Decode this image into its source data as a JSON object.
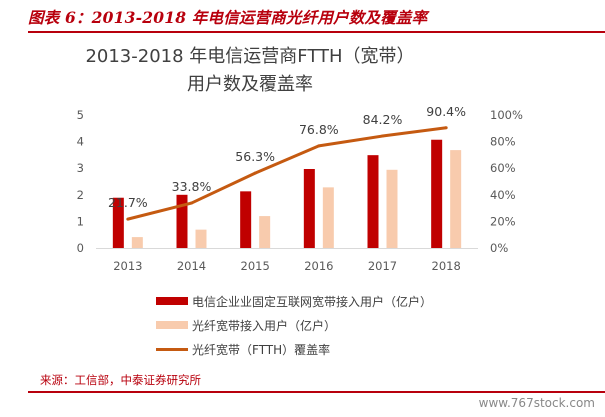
{
  "figure_caption": "图表 6：2013-2018 年电信运营商光纤用户数及覆盖率",
  "source_note": "来源：工信部，中泰证券研究所",
  "watermark": "www.767stock.com",
  "colors": {
    "accent": "#b8000d",
    "bar1": "#c00000",
    "bar2": "#f8cbad",
    "line": "#c55a11"
  },
  "chart_data": {
    "type": "bar",
    "title_line1": "2013-2018 年电信运营商FTTH（宽带）",
    "title_line2": "用户数及覆盖率",
    "categories": [
      "2013",
      "2014",
      "2015",
      "2016",
      "2017",
      "2018"
    ],
    "series": [
      {
        "name": "电信企业业固定互联网宽带接入用户（亿户）",
        "type": "bar",
        "axis": "left",
        "values": [
          1.89,
          2.0,
          2.13,
          2.97,
          3.49,
          4.07
        ]
      },
      {
        "name": "光纤宽带接入用户（亿户）",
        "type": "bar",
        "axis": "left",
        "values": [
          0.41,
          0.69,
          1.2,
          2.28,
          2.94,
          3.68
        ]
      },
      {
        "name": "光纤宽带（FTTH）覆盖率",
        "type": "line",
        "axis": "right",
        "values": [
          21.7,
          33.8,
          56.3,
          76.8,
          84.2,
          90.4
        ],
        "labels": [
          "21.7%",
          "33.8%",
          "56.3%",
          "76.8%",
          "84.2%",
          "90.4%"
        ]
      }
    ],
    "left_axis": {
      "min": 0,
      "max": 5,
      "ticks": [
        "0",
        "1",
        "2",
        "3",
        "4",
        "5"
      ]
    },
    "right_axis": {
      "min": 0,
      "max": 100,
      "ticks": [
        "0%",
        "20%",
        "40%",
        "60%",
        "80%",
        "100%"
      ]
    },
    "grid": false,
    "legend_position": "bottom"
  }
}
